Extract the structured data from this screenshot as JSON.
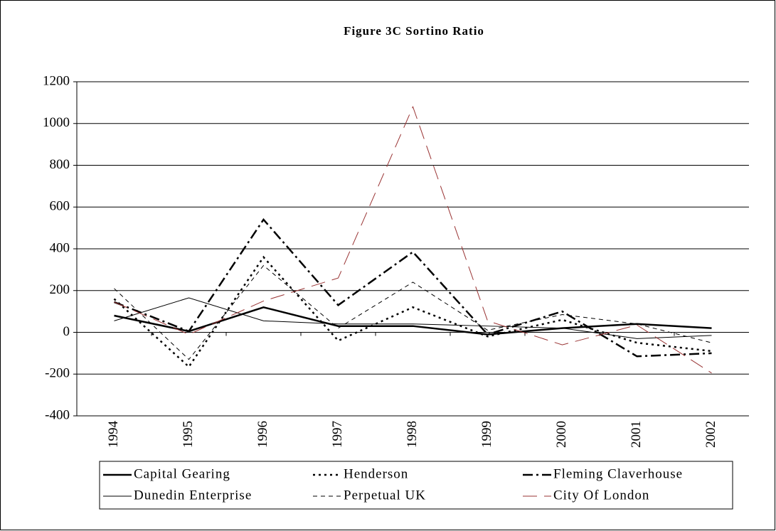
{
  "chart_data": {
    "type": "line",
    "title": "Figure 3C  Sortino Ratio",
    "categories": [
      "1994",
      "1995",
      "1996",
      "1997",
      "1998",
      "1999",
      "2000",
      "2001",
      "2002"
    ],
    "ylim": [
      -400,
      1200
    ],
    "yticks": [
      -400,
      -200,
      0,
      200,
      400,
      600,
      800,
      1000,
      1200
    ],
    "grid": true,
    "legend": "bottom",
    "series": [
      {
        "name": "Capital Gearing",
        "color": "#000000",
        "width": 2.5,
        "dash": "solid",
        "values": [
          80,
          5,
          120,
          30,
          30,
          -10,
          20,
          40,
          20
        ]
      },
      {
        "name": "Henderson",
        "color": "#000000",
        "width": 2.5,
        "dash": "dotted",
        "values": [
          160,
          -165,
          360,
          -40,
          120,
          -20,
          60,
          -50,
          -90
        ]
      },
      {
        "name": "Fleming Claverhouse",
        "color": "#000000",
        "width": 2.5,
        "dash": "dashdot",
        "values": [
          145,
          5,
          540,
          130,
          385,
          -10,
          100,
          -115,
          -100
        ]
      },
      {
        "name": "Dunedin Enterprise",
        "color": "#000000",
        "width": 1,
        "dash": "solid",
        "values": [
          55,
          165,
          55,
          40,
          40,
          30,
          20,
          -30,
          -15
        ]
      },
      {
        "name": "Perpetual UK",
        "color": "#000000",
        "width": 1,
        "dash": "dashed",
        "values": [
          210,
          -130,
          320,
          20,
          240,
          10,
          85,
          40,
          -50
        ]
      },
      {
        "name": "City Of London",
        "color": "#993333",
        "width": 1,
        "dash": "longdash",
        "values": [
          145,
          -10,
          150,
          260,
          1080,
          55,
          -60,
          35,
          -195
        ]
      }
    ]
  }
}
